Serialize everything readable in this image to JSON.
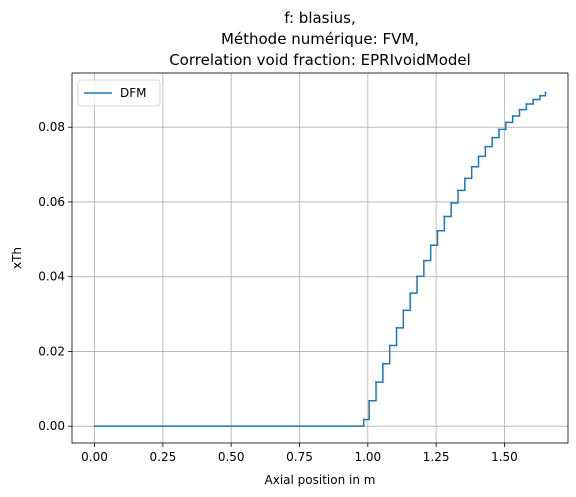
{
  "chart_data": {
    "type": "line",
    "step": true,
    "title_lines": [
      "f: blasius,",
      "Méthode numérique: FVM,",
      "Correlation void fraction: EPRIvoidModel"
    ],
    "xlabel": "Axial position in m",
    "ylabel": "xTh",
    "xlim": [
      -0.0825,
      1.7325
    ],
    "ylim": [
      -0.0045,
      0.0945
    ],
    "xticks": [
      0.0,
      0.25,
      0.5,
      0.75,
      1.0,
      1.25,
      1.5
    ],
    "xtick_labels": [
      "0.00",
      "0.25",
      "0.50",
      "0.75",
      "1.00",
      "1.25",
      "1.50"
    ],
    "yticks": [
      0.0,
      0.02,
      0.04,
      0.06,
      0.08
    ],
    "ytick_labels": [
      "0.00",
      "0.02",
      "0.04",
      "0.06",
      "0.08"
    ],
    "grid": true,
    "legend_position": "top-left",
    "series": [
      {
        "name": "DFM",
        "color": "#1f77b4",
        "x": [
          0.0,
          0.985,
          1.005,
          1.03,
          1.055,
          1.08,
          1.105,
          1.13,
          1.155,
          1.18,
          1.205,
          1.23,
          1.255,
          1.28,
          1.305,
          1.33,
          1.355,
          1.38,
          1.405,
          1.43,
          1.455,
          1.48,
          1.505,
          1.53,
          1.555,
          1.58,
          1.605,
          1.63,
          1.65
        ],
        "y": [
          0.0,
          0.0018,
          0.0068,
          0.0118,
          0.0167,
          0.0216,
          0.0263,
          0.031,
          0.0356,
          0.0401,
          0.0443,
          0.0484,
          0.0523,
          0.0561,
          0.0597,
          0.0631,
          0.0663,
          0.0694,
          0.0722,
          0.0748,
          0.0772,
          0.0794,
          0.0813,
          0.083,
          0.0847,
          0.0862,
          0.0874,
          0.0884,
          0.0893
        ]
      }
    ]
  }
}
